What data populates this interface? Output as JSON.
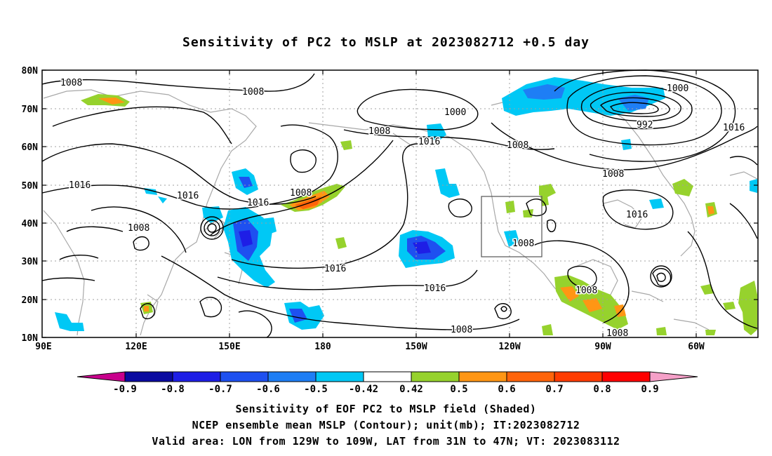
{
  "title": "Sensitivity of PC2 to MSLP at 2023082712 +0.5 day",
  "axes": {
    "lat_labels": [
      "80N",
      "70N",
      "60N",
      "50N",
      "40N",
      "30N",
      "20N",
      "10N"
    ],
    "lon_labels": [
      "90E",
      "120E",
      "150E",
      "180",
      "150W",
      "120W",
      "90W",
      "60W"
    ]
  },
  "colorbar": {
    "tick_labels": [
      "-0.9",
      "-0.8",
      "-0.7",
      "-0.6",
      "-0.5",
      "-0.42",
      "0.42",
      "0.5",
      "0.6",
      "0.7",
      "0.8",
      "0.9"
    ],
    "colors": [
      "#c8008c",
      "#0a0aa0",
      "#1e1ee6",
      "#1e50f0",
      "#1e7ef5",
      "#00c8f5",
      "#ffffff",
      "#96d22d",
      "#ff9614",
      "#ff640a",
      "#ff3c00",
      "#ff0000",
      "#f5a0c8"
    ]
  },
  "contour_labels": [
    {
      "text": "1008"
    },
    {
      "text": "1008"
    },
    {
      "text": "1000"
    },
    {
      "text": "1008"
    },
    {
      "text": "1016"
    },
    {
      "text": "1008"
    },
    {
      "text": "1000"
    },
    {
      "text": "992"
    },
    {
      "text": "1016"
    },
    {
      "text": "1016"
    },
    {
      "text": "1016"
    },
    {
      "text": "1008"
    },
    {
      "text": "1016"
    },
    {
      "text": "1008"
    },
    {
      "text": "1016"
    },
    {
      "text": "1008"
    },
    {
      "text": "1016"
    },
    {
      "text": "1016"
    },
    {
      "text": "1008"
    },
    {
      "text": "1008"
    },
    {
      "text": "1008"
    },
    {
      "text": "1008"
    },
    {
      "text": "1008"
    }
  ],
  "valid_area": {
    "lon_min": -129,
    "lon_max": -109,
    "lat_min": 31,
    "lat_max": 47
  },
  "captions": [
    "Sensitivity of EOF PC2 to MSLP field (Shaded)",
    "NCEP ensemble mean MSLP (Contour); unit(mb); IT:2023082712",
    "Valid area: LON from 129W to 109W, LAT from 31N to 47N; VT: 2023083112"
  ]
}
